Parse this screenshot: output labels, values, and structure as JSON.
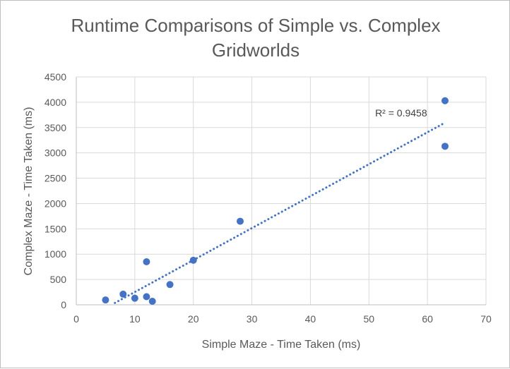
{
  "chart_data": {
    "type": "scatter",
    "title_lines": [
      "Runtime Comparisons of Simple vs. Complex",
      "Gridworlds"
    ],
    "xlabel": "Simple Maze - Time Taken (ms)",
    "ylabel": "Complex Maze - Time Taken (ms)",
    "xlim": [
      0,
      70
    ],
    "ylim": [
      0,
      4500
    ],
    "xticks": [
      0,
      10,
      20,
      30,
      40,
      50,
      60,
      70
    ],
    "yticks": [
      0,
      500,
      1000,
      1500,
      2000,
      2500,
      3000,
      3500,
      4000,
      4500
    ],
    "grid": true,
    "legend": "none",
    "colors": {
      "marker": "#4472C4",
      "trendline": "#4472C4",
      "grid": "#d9d9d9"
    },
    "series": [
      {
        "points": [
          [
            5,
            95
          ],
          [
            8,
            210
          ],
          [
            10,
            130
          ],
          [
            12,
            850
          ],
          [
            12,
            160
          ],
          [
            13,
            70
          ],
          [
            16,
            400
          ],
          [
            20,
            880
          ],
          [
            28,
            1650
          ],
          [
            63,
            4030
          ],
          [
            63,
            3130
          ]
        ]
      }
    ],
    "trendline": {
      "type": "linear",
      "x_range": [
        6.6,
        63
      ],
      "r_squared_label": "R² = 0.9458"
    }
  }
}
